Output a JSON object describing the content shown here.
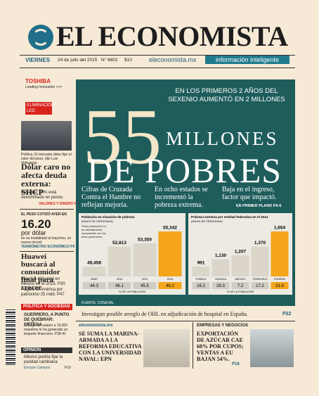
{
  "header": {
    "brand": "EL ECONOMISTA",
    "day": "VIERNES",
    "date": "24 de julio del 2015",
    "number": "N° 6802",
    "price": "$10",
    "url": "eleconomista.mx",
    "tagline": "información inteligente"
  },
  "ad": {
    "brand": "TOSHIBA",
    "slogan": "Leading Innovation >>>",
    "product": "ILUMINACIÓN LED"
  },
  "left_stories": [
    {
      "caption": "Política. El mercado debe fijar el valor del peso, dijo Luis Videgaray.",
      "headline": "Dólar caro no afecta deuda externa: SHCP",
      "bullet": "Del total, 78% está denominado en pesos.",
      "section": "VALORES Y DINERO P4"
    },
    {
      "label": "EL PESO COTIZÓ AYER EN",
      "value": "16.20",
      "unit": "por dólar",
      "note": "en su modalidad al mayoreo, un nuevo récord.",
      "section": "TERMÓMETRO ECONÓMICO P5"
    },
    {
      "headline": "Huawei buscará al consumidor final para crecer",
      "bullets": [
        "Invertirá 400 mdd en México en el 2015. P30",
        "Pagará al América por patrocinio 25 mdd. P47"
      ]
    },
    {
      "section": "POLÍTICA Y SOCIEDAD",
      "headline": "GUERRERO, A PUNTO DE QUEBRAR: ORTEGA",
      "text": "El pago del salario a 19,000 maestros le ha generado un boquete financiero. P38-41"
    },
    {
      "section": "OPINIÓN",
      "headline": "México podría fijar la paridad cambiaria",
      "author": "Enrique Campos",
      "page": "P10"
    }
  ],
  "main": {
    "kicker": "EN LOS PRIMEROS 2 AÑOS DEL SEXENIO AUMENTÓ EN 2 MILLONES",
    "number": "55",
    "line1": "MILLONES",
    "line2": "DE POBRES",
    "bullets": [
      "Cifras de Cruzada Contra el Hambre no reflejan mejoría.",
      "En ocho estados se incrementó la pobreza extrema.",
      "Baja en el ingreso, factor que impactó."
    ],
    "ref": "EN PRIMER PLANO P4-5",
    "source": "FUENTE: CONEVAL"
  },
  "charts": [
    {
      "type": "bar",
      "title": "Población en situación de pobreza",
      "subtitle": "(MILES DE PERSONAS)",
      "note": "*Esta estimación no es estrictamente comparable con los años posteriores",
      "categories": [
        "2008*",
        "2010",
        "2012",
        "2014"
      ],
      "values": [
        49458,
        52813,
        53350,
        55342
      ],
      "value_labels": [
        "49,458",
        "52,813",
        "53,350",
        "55,342"
      ],
      "colors": [
        "#dcd6ca",
        "#dcd6ca",
        "#dcd6ca",
        "#f4a51c"
      ],
      "shares": [
        44.3,
        46.1,
        45.5,
        46.2
      ],
      "shares_label": "% DE LA POBLACIÓN"
    },
    {
      "type": "bar",
      "title": "Pobreza extrema por entidad federativa en el 2014",
      "subtitle": "(MILES DE PERSONAS)",
      "categories": [
        "PUEBLA",
        "OAXACA",
        "MÉXICO",
        "VERACRUZ",
        "CHIAPAS"
      ],
      "values": [
        991,
        1130,
        1207,
        1370,
        1654
      ],
      "value_labels": [
        "991",
        "1,130",
        "1,207",
        "1,370",
        "1,654"
      ],
      "colors": [
        "#dcd6ca",
        "#dcd6ca",
        "#dcd6ca",
        "#dcd6ca",
        "#f4a51c"
      ],
      "shares": [
        16.2,
        28.3,
        7.2,
        17.2,
        31.8
      ],
      "shares_label": "% DE LA POBLACIÓN"
    }
  ],
  "strip": {
    "headline": "Investigan posible arreglo de OHL en adjudicación de hospital en España.",
    "page": "P22"
  },
  "bottom": [
    {
      "section": "eleconomista.mx",
      "headline": "SE SUMA LA MARINA-ARMADA A LA REFORMA EDUCATIVA CON LA UNIVERSIDAD NAVAL: EPN"
    },
    {
      "section": "EMPRESAS Y NEGOCIOS",
      "headline": "EXPORTACIÓN DE AZÚCAR CAE 60% POR CUPOS; VENTAS A EU BAJAN 54%.",
      "page": "P18"
    }
  ]
}
